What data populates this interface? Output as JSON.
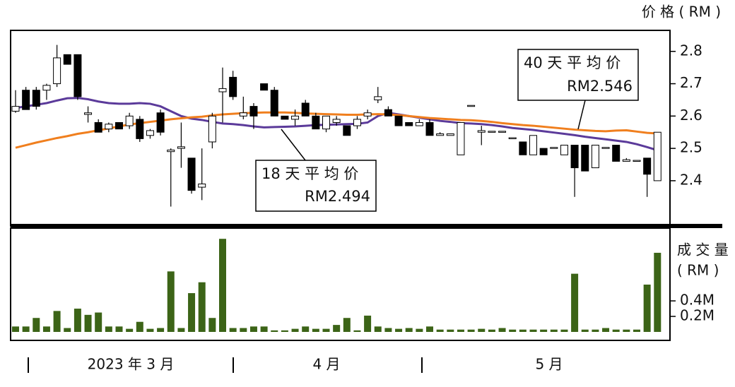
{
  "chart_data": [
    {
      "type": "candlestick",
      "y_label": "价 格 ( RM )",
      "x_group_labels": [
        "2023 年 3 月",
        "4 月",
        "5 月"
      ],
      "open": [
        2.615,
        2.68,
        2.68,
        2.68,
        2.7,
        2.79,
        2.79,
        2.605,
        2.58,
        2.56,
        2.58,
        2.57,
        2.59,
        2.54,
        2.61,
        2.49,
        2.5,
        2.47,
        2.38,
        2.52,
        2.675,
        2.72,
        2.6,
        2.63,
        2.7,
        2.68,
        2.6,
        2.59,
        2.64,
        2.6,
        2.56,
        2.58,
        2.57,
        2.57,
        2.6,
        2.65,
        2.62,
        2.6,
        2.58,
        2.57,
        2.58,
        2.54,
        2.54,
        2.48,
        2.63,
        2.55,
        2.55,
        2.55,
        2.53,
        2.52,
        2.48,
        2.5,
        2.5,
        2.48,
        2.51,
        2.51,
        2.44,
        2.5,
        2.51,
        2.46,
        2.46,
        2.47,
        2.4
      ],
      "high": [
        2.68,
        2.69,
        2.69,
        2.7,
        2.82,
        2.79,
        2.79,
        2.63,
        2.59,
        2.58,
        2.58,
        2.61,
        2.6,
        2.56,
        2.62,
        2.5,
        2.58,
        2.47,
        2.5,
        2.61,
        2.75,
        2.74,
        2.66,
        2.64,
        2.7,
        2.69,
        2.6,
        2.62,
        2.65,
        2.61,
        2.6,
        2.6,
        2.57,
        2.6,
        2.62,
        2.69,
        2.63,
        2.6,
        2.58,
        2.59,
        2.59,
        2.55,
        2.54,
        2.58,
        2.63,
        2.57,
        2.55,
        2.55,
        2.53,
        2.52,
        2.54,
        2.5,
        2.5,
        2.51,
        2.51,
        2.51,
        2.51,
        2.5,
        2.51,
        2.47,
        2.46,
        2.47,
        2.55
      ],
      "low": [
        2.61,
        2.62,
        2.62,
        2.65,
        2.69,
        2.76,
        2.65,
        2.58,
        2.55,
        2.55,
        2.56,
        2.56,
        2.52,
        2.53,
        2.54,
        2.32,
        2.44,
        2.36,
        2.34,
        2.5,
        2.58,
        2.65,
        2.59,
        2.56,
        2.68,
        2.6,
        2.59,
        2.57,
        2.6,
        2.56,
        2.55,
        2.57,
        2.54,
        2.56,
        2.59,
        2.64,
        2.6,
        2.57,
        2.57,
        2.57,
        2.54,
        2.54,
        2.54,
        2.48,
        2.63,
        2.51,
        2.55,
        2.55,
        2.53,
        2.48,
        2.48,
        2.48,
        2.5,
        2.48,
        2.35,
        2.43,
        2.44,
        2.5,
        2.46,
        2.46,
        2.46,
        2.35,
        2.4
      ],
      "close": [
        2.63,
        2.62,
        2.63,
        2.695,
        2.78,
        2.76,
        2.66,
        2.61,
        2.55,
        2.575,
        2.56,
        2.6,
        2.53,
        2.555,
        2.55,
        2.495,
        2.505,
        2.37,
        2.39,
        2.6,
        2.685,
        2.66,
        2.61,
        2.6,
        2.68,
        2.6,
        2.59,
        2.6,
        2.6,
        2.56,
        2.6,
        2.59,
        2.54,
        2.59,
        2.61,
        2.66,
        2.6,
        2.57,
        2.57,
        2.58,
        2.54,
        2.545,
        2.545,
        2.58,
        2.633,
        2.555,
        2.553,
        2.553,
        2.533,
        2.48,
        2.54,
        2.48,
        2.503,
        2.51,
        2.44,
        2.43,
        2.51,
        2.503,
        2.46,
        2.465,
        2.463,
        2.42,
        2.55
      ],
      "up_color": "#ffffff",
      "down_color": "#000000",
      "series": [
        {
          "label": "18 天 平 均 价",
          "value_label": "RM2.494",
          "color": "#5b3a9a",
          "values": [
            2.625,
            2.63,
            2.635,
            2.64,
            2.648,
            2.655,
            2.656,
            2.652,
            2.645,
            2.64,
            2.638,
            2.638,
            2.64,
            2.638,
            2.63,
            2.615,
            2.6,
            2.592,
            2.588,
            2.582,
            2.577,
            2.575,
            2.572,
            2.568,
            2.565,
            2.566,
            2.567,
            2.568,
            2.57,
            2.572,
            2.573,
            2.574,
            2.575,
            2.576,
            2.58,
            2.6,
            2.61,
            2.605,
            2.6,
            2.595,
            2.59,
            2.585,
            2.582,
            2.578,
            2.577,
            2.575,
            2.572,
            2.568,
            2.563,
            2.56,
            2.557,
            2.553,
            2.549,
            2.545,
            2.541,
            2.536,
            2.532,
            2.528,
            2.524,
            2.52,
            2.513,
            2.504,
            2.494
          ]
        },
        {
          "label": "40 天 平 均 价",
          "value_label": "RM2.546",
          "color": "#f07f1e",
          "values": [
            2.502,
            2.51,
            2.518,
            2.525,
            2.532,
            2.538,
            2.545,
            2.55,
            2.556,
            2.562,
            2.568,
            2.574,
            2.578,
            2.582,
            2.586,
            2.59,
            2.593,
            2.596,
            2.598,
            2.602,
            2.605,
            2.607,
            2.609,
            2.61,
            2.611,
            2.611,
            2.611,
            2.61,
            2.608,
            2.607,
            2.606,
            2.605,
            2.604,
            2.604,
            2.605,
            2.606,
            2.605,
            2.603,
            2.6,
            2.597,
            2.594,
            2.592,
            2.59,
            2.588,
            2.587,
            2.585,
            2.582,
            2.578,
            2.575,
            2.572,
            2.57,
            2.567,
            2.564,
            2.561,
            2.558,
            2.556,
            2.554,
            2.553,
            2.555,
            2.556,
            2.552,
            2.548,
            2.546
          ]
        }
      ],
      "ylim": [
        2.26,
        2.865
      ],
      "yticks": [
        2.4,
        2.5,
        2.6,
        2.7,
        2.8
      ]
    },
    {
      "type": "bar",
      "y_label": [
        "成 交 量",
        "( RM )"
      ],
      "color": "#3c6417",
      "values": [
        0.07,
        0.07,
        0.18,
        0.07,
        0.27,
        0.05,
        0.3,
        0.22,
        0.25,
        0.07,
        0.07,
        0.04,
        0.13,
        0.04,
        0.05,
        0.78,
        0.05,
        0.5,
        0.64,
        0.18,
        1.2,
        0.05,
        0.05,
        0.07,
        0.07,
        0.02,
        0.02,
        0.04,
        0.07,
        0.04,
        0.04,
        0.09,
        0.18,
        0.02,
        0.21,
        0.07,
        0.05,
        0.04,
        0.05,
        0.04,
        0.07,
        0.03,
        0.03,
        0.03,
        0.03,
        0.04,
        0.03,
        0.05,
        0.03,
        0.03,
        0.03,
        0.03,
        0.03,
        0.03,
        0.75,
        0.03,
        0.03,
        0.05,
        0.03,
        0.03,
        0.03,
        0.61,
        1.02
      ],
      "ylim": [
        0,
        1.32
      ],
      "yticks": [
        {
          "value": 0.2,
          "label": "0.2M"
        },
        {
          "value": 0.4,
          "label": "0.4M"
        }
      ]
    }
  ]
}
